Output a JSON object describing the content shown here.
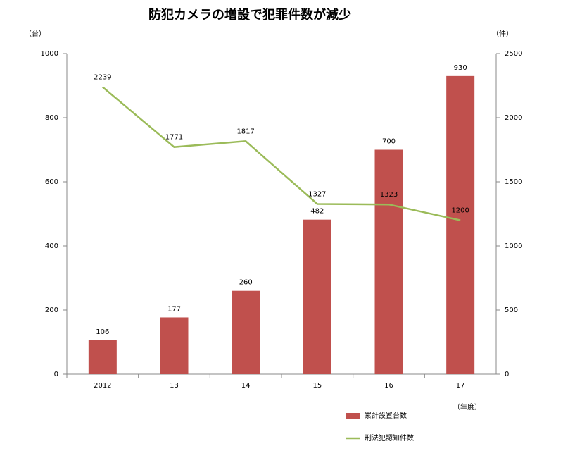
{
  "chart_data": {
    "type": "bar",
    "title": "防犯カメラの増設で犯罪件数が減少",
    "y_label": "（台）",
    "y2_label": "（件）",
    "x_label": "（年度）",
    "categories": [
      "2012",
      "13",
      "14",
      "15",
      "16",
      "17"
    ],
    "series": [
      {
        "name": "累計設置台数",
        "type": "bar",
        "color": "#c0504d",
        "values": [
          106,
          177,
          260,
          482,
          700,
          930
        ]
      },
      {
        "name": "刑法犯認知件数",
        "type": "line",
        "axis": "y2",
        "color": "#9bbb59",
        "values": [
          2239,
          1771,
          1817,
          1327,
          1323,
          1200
        ]
      }
    ],
    "ylim": [
      0,
      1000
    ],
    "yticks": [
      0,
      200,
      400,
      600,
      800,
      1000
    ],
    "y2lim": [
      0,
      2500
    ],
    "y2ticks": [
      0,
      500,
      1000,
      1500,
      2000,
      2500
    ],
    "grid": false,
    "legend": "bottom"
  }
}
